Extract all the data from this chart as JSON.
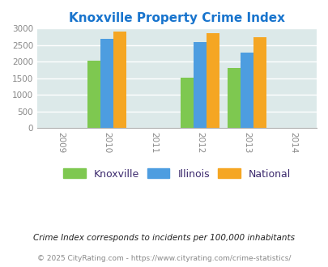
{
  "title": "Knoxville Property Crime Index",
  "title_color": "#1874cd",
  "plot_bg_color": "#dce9e9",
  "fig_bg_color": "#ffffff",
  "years": [
    2009,
    2010,
    2011,
    2012,
    2013,
    2014
  ],
  "data_years": [
    2010,
    2012,
    2013
  ],
  "knoxville": [
    2030,
    1510,
    1800
  ],
  "illinois": [
    2680,
    2590,
    2270
  ],
  "national": [
    2920,
    2850,
    2730
  ],
  "knoxville_color": "#7ec850",
  "illinois_color": "#4d9de0",
  "national_color": "#f5a623",
  "ylim": [
    0,
    3000
  ],
  "yticks": [
    0,
    500,
    1000,
    1500,
    2000,
    2500,
    3000
  ],
  "bar_width": 0.28,
  "legend_labels": [
    "Knoxville",
    "Illinois",
    "National"
  ],
  "legend_text_color": "#3d2b6e",
  "footnote1": "Crime Index corresponds to incidents per 100,000 inhabitants",
  "footnote2": "© 2025 CityRating.com - https://www.cityrating.com/crime-statistics/",
  "footnote1_color": "#222222",
  "footnote2_color": "#888888",
  "grid_color": "#ffffff",
  "tick_color": "#888888"
}
